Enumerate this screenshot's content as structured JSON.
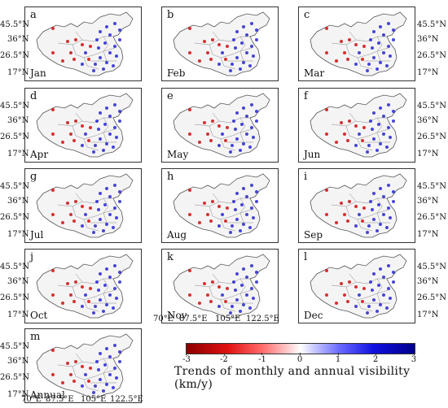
{
  "panels": [
    {
      "label": "a",
      "month": "Jan"
    },
    {
      "label": "b",
      "month": "Feb"
    },
    {
      "label": "c",
      "month": "Mar"
    },
    {
      "label": "d",
      "month": "Apr"
    },
    {
      "label": "e",
      "month": "May"
    },
    {
      "label": "f",
      "month": "Jun"
    },
    {
      "label": "g",
      "month": "Jul"
    },
    {
      "label": "h",
      "month": "Aug"
    },
    {
      "label": "i",
      "month": "Sep"
    },
    {
      "label": "j",
      "month": "Oct"
    },
    {
      "label": "k",
      "month": "Nov"
    },
    {
      "label": "l",
      "month": "Dec"
    },
    {
      "label": "m",
      "month": "Annual"
    }
  ],
  "lat_labels": [
    "45.5°N",
    "36°N",
    "26.5°N",
    "17°N"
  ],
  "lon_labels": [
    "70°E",
    "87.5°E",
    "105°E",
    "122.5°E"
  ],
  "colorbar": {
    "ticks": [
      "-3",
      "-2",
      "-1",
      "0",
      "1",
      "2",
      "3"
    ],
    "title": "Trends of monthly and annual visibility (km/y)"
  },
  "colors": {
    "negative": "#cc0000",
    "positive": "#1a1acc",
    "border": "#555555"
  }
}
